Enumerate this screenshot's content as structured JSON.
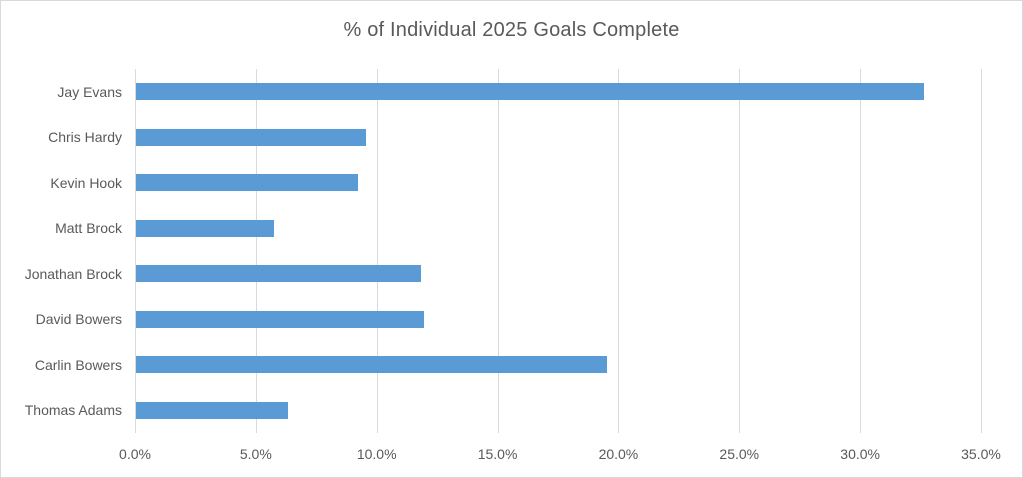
{
  "title": "% of Individual 2025 Goals Complete",
  "colors": {
    "bar": "#5b9bd5",
    "gridline": "#d9d9d9",
    "text": "#595959",
    "border": "#d9d9d9",
    "background": "#ffffff"
  },
  "chart_data": {
    "type": "bar",
    "orientation": "horizontal",
    "title": "% of Individual 2025 Goals Complete",
    "categories": [
      "Jay Evans",
      "Chris Hardy",
      "Kevin Hook",
      "Matt Brock",
      "Jonathan Brock",
      "David Bowers",
      "Carlin Bowers",
      "Thomas Adams"
    ],
    "values": [
      32.6,
      9.5,
      9.2,
      5.7,
      11.8,
      11.9,
      19.5,
      6.3
    ],
    "unit": "%",
    "xlabel": "",
    "ylabel": "",
    "xlim": [
      0,
      35
    ],
    "xtick_step": 5,
    "xtick_labels": [
      "0.0%",
      "5.0%",
      "10.0%",
      "15.0%",
      "20.0%",
      "25.0%",
      "30.0%",
      "35.0%"
    ],
    "grid": true,
    "legend": false
  }
}
